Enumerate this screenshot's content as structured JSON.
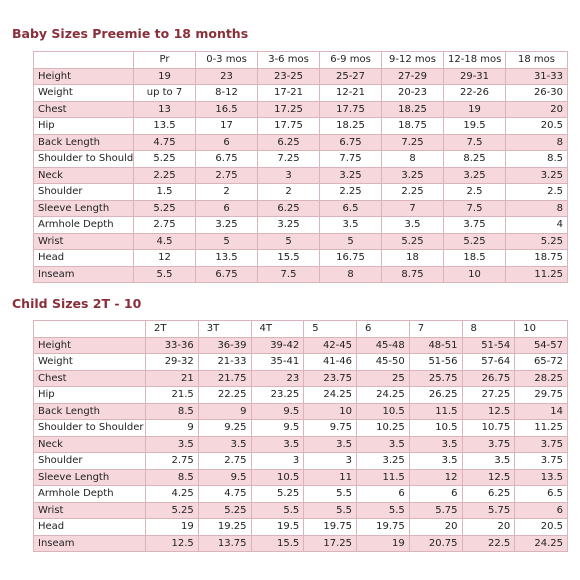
{
  "baby": {
    "title": "Baby Sizes Preemie to 18 months",
    "columns": [
      "Pr",
      "0-3 mos",
      "3-6 mos",
      "6-9 mos",
      "9-12 mos",
      "12-18 mos",
      "18 mos"
    ],
    "rows": [
      {
        "label": "Height",
        "values": [
          "19",
          "23",
          "23-25",
          "25-27",
          "27-29",
          "29-31",
          "31-33"
        ]
      },
      {
        "label": "Weight",
        "values": [
          "up to 7",
          "8-12",
          "17-21",
          "12-21",
          "20-23",
          "22-26",
          "26-30"
        ]
      },
      {
        "label": "Chest",
        "values": [
          "13",
          "16.5",
          "17.25",
          "17.75",
          "18.25",
          "19",
          "20"
        ]
      },
      {
        "label": "Hip",
        "values": [
          "13.5",
          "17",
          "17.75",
          "18.25",
          "18.75",
          "19.5",
          "20.5"
        ]
      },
      {
        "label": "Back Length",
        "values": [
          "4.75",
          "6",
          "6.25",
          "6.75",
          "7.25",
          "7.5",
          "8"
        ]
      },
      {
        "label": "Shoulder to Shoulder",
        "values": [
          "5.25",
          "6.75",
          "7.25",
          "7.75",
          "8",
          "8.25",
          "8.5"
        ]
      },
      {
        "label": "Neck",
        "values": [
          "2.25",
          "2.75",
          "3",
          "3.25",
          "3.25",
          "3.25",
          "3.25"
        ]
      },
      {
        "label": "Shoulder",
        "values": [
          "1.5",
          "2",
          "2",
          "2.25",
          "2.25",
          "2.5",
          "2.5"
        ]
      },
      {
        "label": "Sleeve Length",
        "values": [
          "5.25",
          "6",
          "6.25",
          "6.5",
          "7",
          "7.5",
          "8"
        ]
      },
      {
        "label": "Armhole Depth",
        "values": [
          "2.75",
          "3.25",
          "3.25",
          "3.5",
          "3.5",
          "3.75",
          "4"
        ]
      },
      {
        "label": "Wrist",
        "values": [
          "4.5",
          "5",
          "5",
          "5",
          "5.25",
          "5.25",
          "5.25"
        ]
      },
      {
        "label": "Head",
        "values": [
          "12",
          "13.5",
          "15.5",
          "16.75",
          "18",
          "18.5",
          "18.75"
        ]
      },
      {
        "label": "Inseam",
        "values": [
          "5.5",
          "6.75",
          "7.5",
          "8",
          "8.75",
          "10",
          "11.25"
        ]
      }
    ]
  },
  "child": {
    "title": "Child Sizes 2T - 10",
    "columns": [
      "2T",
      "3T",
      "4T",
      "5",
      "6",
      "7",
      "8",
      "10"
    ],
    "rows": [
      {
        "label": "Height",
        "values": [
          "33-36",
          "36-39",
          "39-42",
          "42-45",
          "45-48",
          "48-51",
          "51-54",
          "54-57"
        ]
      },
      {
        "label": "Weight",
        "values": [
          "29-32",
          "21-33",
          "35-41",
          "41-46",
          "45-50",
          "51-56",
          "57-64",
          "65-72"
        ]
      },
      {
        "label": "Chest",
        "values": [
          "21",
          "21.75",
          "23",
          "23.75",
          "25",
          "25.75",
          "26.75",
          "28.25"
        ]
      },
      {
        "label": "Hip",
        "values": [
          "21.5",
          "22.25",
          "23.25",
          "24.25",
          "24.25",
          "26.25",
          "27.25",
          "29.75"
        ]
      },
      {
        "label": "Back Length",
        "values": [
          "8.5",
          "9",
          "9.5",
          "10",
          "10.5",
          "11.5",
          "12.5",
          "14"
        ]
      },
      {
        "label": "Shoulder to Shoulder",
        "values": [
          "9",
          "9.25",
          "9.5",
          "9.75",
          "10.25",
          "10.5",
          "10.75",
          "11.25"
        ]
      },
      {
        "label": "Neck",
        "values": [
          "3.5",
          "3.5",
          "3.5",
          "3.5",
          "3.5",
          "3.5",
          "3.75",
          "3.75"
        ]
      },
      {
        "label": "Shoulder",
        "values": [
          "2.75",
          "2.75",
          "3",
          "3",
          "3.25",
          "3.5",
          "3.5",
          "3.75"
        ]
      },
      {
        "label": "Sleeve Length",
        "values": [
          "8.5",
          "9.5",
          "10.5",
          "11",
          "11.5",
          "12",
          "12.5",
          "13.5"
        ]
      },
      {
        "label": "Armhole Depth",
        "values": [
          "4.25",
          "4.75",
          "5.25",
          "5.5",
          "6",
          "6",
          "6.25",
          "6.5"
        ]
      },
      {
        "label": "Wrist",
        "values": [
          "5.25",
          "5.25",
          "5.5",
          "5.5",
          "5.5",
          "5.75",
          "5.75",
          "6"
        ]
      },
      {
        "label": "Head",
        "values": [
          "19",
          "19.25",
          "19.5",
          "19.75",
          "19.75",
          "20",
          "20",
          "20.5"
        ]
      },
      {
        "label": "Inseam",
        "values": [
          "12.5",
          "13.75",
          "15.5",
          "17.25",
          "19",
          "20.75",
          "22.5",
          "24.25"
        ]
      }
    ]
  }
}
